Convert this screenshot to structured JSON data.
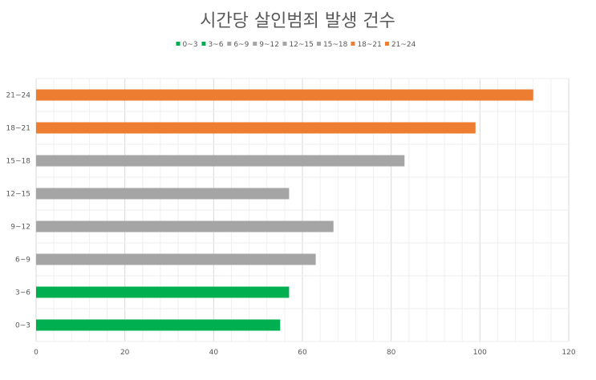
{
  "chart_data": {
    "type": "bar",
    "orientation": "horizontal",
    "title": "시간당 살인범죄 발생 건수",
    "categories": [
      "0~3",
      "3~6",
      "6~9",
      "9~12",
      "12~15",
      "15~18",
      "18~21",
      "21~24"
    ],
    "values": [
      55,
      57,
      63,
      67,
      57,
      83,
      99,
      112
    ],
    "colors": [
      "#00b050",
      "#00b050",
      "#a5a5a5",
      "#a5a5a5",
      "#a5a5a5",
      "#a5a5a5",
      "#ed7d31",
      "#ed7d31"
    ],
    "xlim": [
      0,
      120
    ],
    "x_ticks": [
      0,
      20,
      40,
      60,
      80,
      100,
      120
    ],
    "grid": true,
    "legend_position": "top",
    "legend": [
      "0~3",
      "3~6",
      "6~9",
      "9~12",
      "12~15",
      "15~18",
      "18~21",
      "21~24"
    ]
  }
}
